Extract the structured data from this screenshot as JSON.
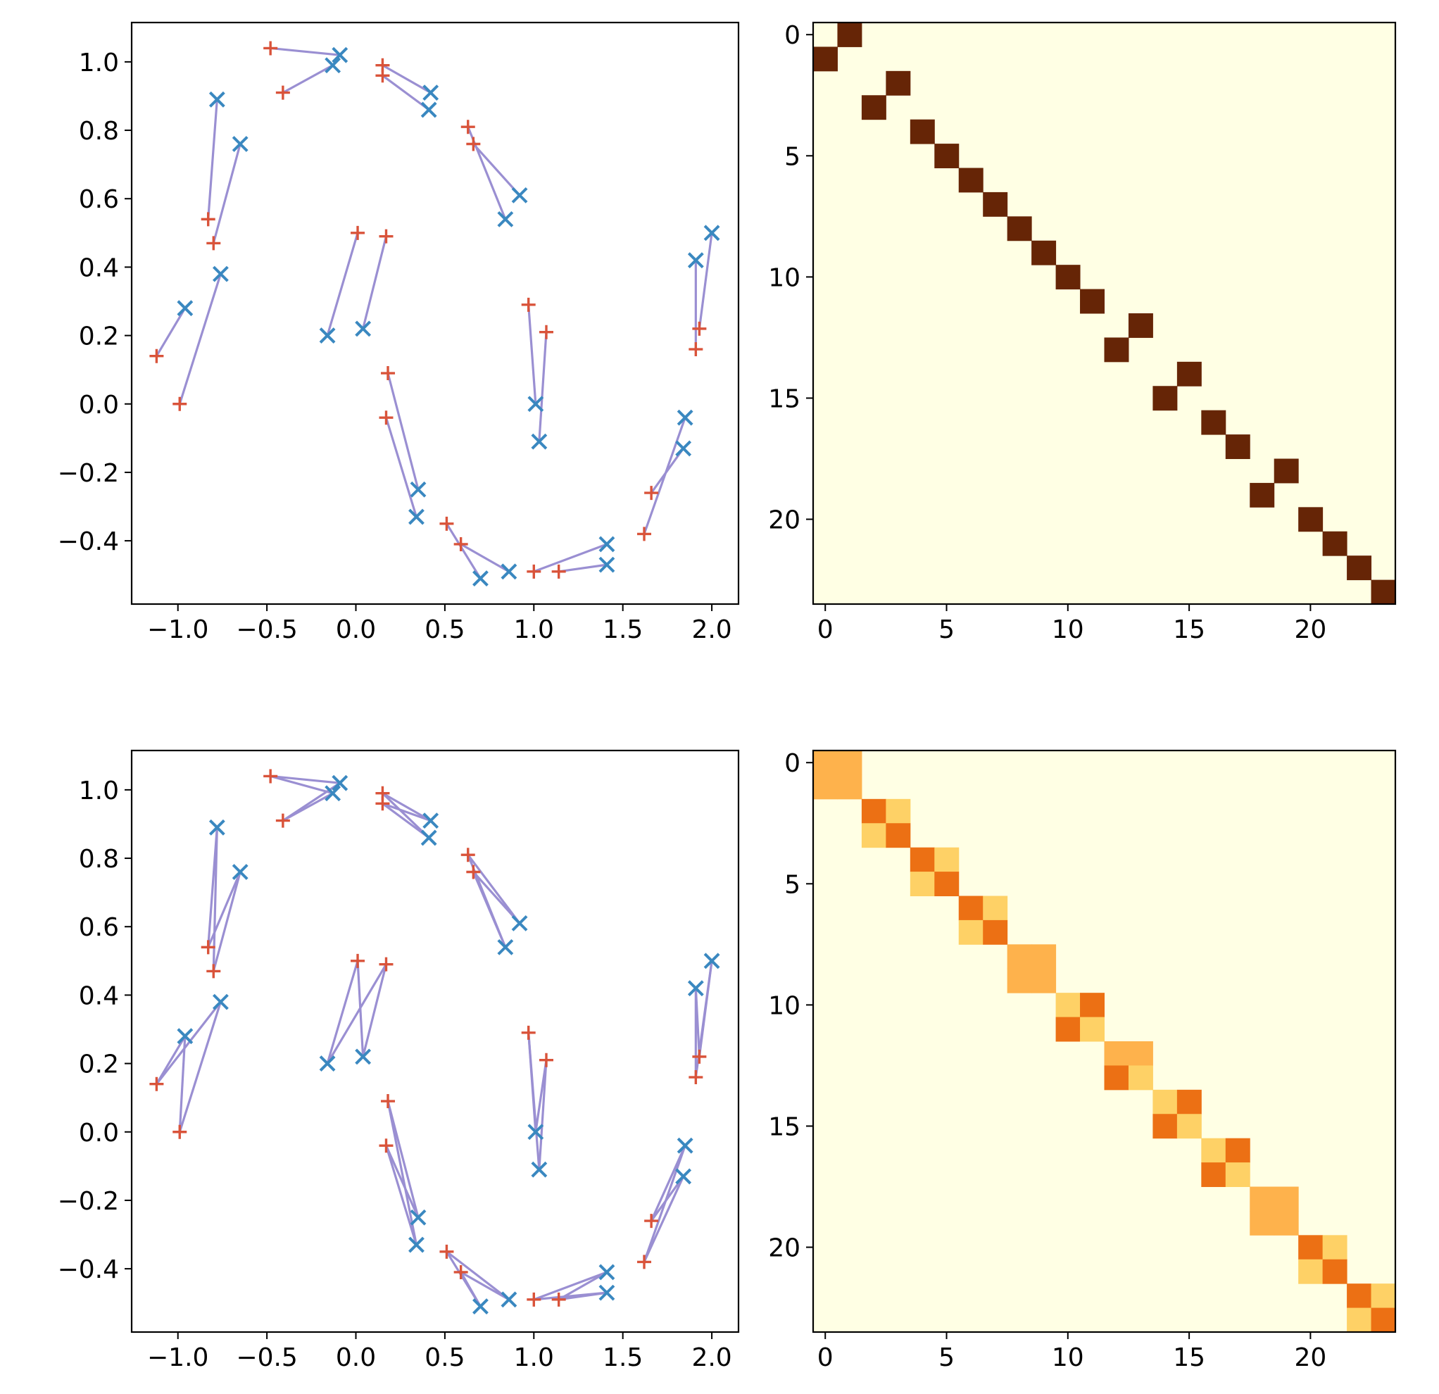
{
  "colors": {
    "source_marker": "#d9533a",
    "target_marker": "#3a88c0",
    "coupling_line": "#9a8fd2",
    "heat_background": "#ffffe4",
    "heat_dark": "#662506",
    "heat_mid": "#ec7014",
    "heat_light": "#feb24c",
    "heat_pale": "#fed166",
    "axis": "#000000"
  },
  "chart_data": [
    {
      "type": "scatter",
      "panel": "top-left",
      "title": "",
      "xlabel": "",
      "ylabel": "",
      "xlim": [
        -1.26,
        2.15
      ],
      "ylim": [
        -0.585,
        1.115
      ],
      "xticks": [
        -1.0,
        -0.5,
        0.0,
        0.5,
        1.0,
        1.5,
        2.0
      ],
      "xtick_labels": [
        "−1.0",
        "−0.5",
        "0.0",
        "0.5",
        "1.0",
        "1.5",
        "2.0"
      ],
      "yticks": [
        -0.4,
        -0.2,
        0.0,
        0.2,
        0.4,
        0.6,
        0.8,
        1.0
      ],
      "ytick_labels": [
        "−0.4",
        "−0.2",
        "0.0",
        "0.2",
        "0.4",
        "0.6",
        "0.8",
        "1.0"
      ],
      "grid": false,
      "series": [
        {
          "marker": "+",
          "points": [
            [
              -0.48,
              1.04
            ],
            [
              -0.41,
              0.91
            ],
            [
              0.15,
              0.99
            ],
            [
              0.15,
              0.96
            ],
            [
              0.63,
              0.81
            ],
            [
              0.66,
              0.76
            ],
            [
              -0.83,
              0.54
            ],
            [
              -0.8,
              0.47
            ],
            [
              0.01,
              0.5
            ],
            [
              0.17,
              0.49
            ],
            [
              0.97,
              0.29
            ],
            [
              1.07,
              0.21
            ],
            [
              -1.12,
              0.14
            ],
            [
              -0.99,
              0.0
            ],
            [
              0.18,
              0.09
            ],
            [
              0.17,
              -0.04
            ],
            [
              1.93,
              0.22
            ],
            [
              1.91,
              0.16
            ],
            [
              1.66,
              -0.26
            ],
            [
              1.62,
              -0.38
            ],
            [
              0.51,
              -0.35
            ],
            [
              0.59,
              -0.41
            ],
            [
              1.0,
              -0.49
            ],
            [
              1.14,
              -0.49
            ]
          ]
        },
        {
          "marker": "x",
          "points": [
            [
              -0.09,
              1.02
            ],
            [
              -0.13,
              0.99
            ],
            [
              0.42,
              0.91
            ],
            [
              0.41,
              0.86
            ],
            [
              0.92,
              0.61
            ],
            [
              0.84,
              0.54
            ],
            [
              -0.78,
              0.89
            ],
            [
              -0.65,
              0.76
            ],
            [
              -0.16,
              0.2
            ],
            [
              0.04,
              0.22
            ],
            [
              1.01,
              0.0
            ],
            [
              1.03,
              -0.11
            ],
            [
              -0.96,
              0.28
            ],
            [
              -0.76,
              0.38
            ],
            [
              0.35,
              -0.25
            ],
            [
              0.34,
              -0.33
            ],
            [
              2.0,
              0.5
            ],
            [
              1.91,
              0.42
            ],
            [
              1.84,
              -0.13
            ],
            [
              1.85,
              -0.04
            ],
            [
              0.7,
              -0.51
            ],
            [
              0.86,
              -0.49
            ],
            [
              1.41,
              -0.41
            ],
            [
              1.41,
              -0.47
            ]
          ]
        }
      ],
      "couplings": [
        [
          0,
          0
        ],
        [
          1,
          1
        ],
        [
          2,
          2
        ],
        [
          3,
          3
        ],
        [
          4,
          5
        ],
        [
          5,
          4
        ],
        [
          6,
          6
        ],
        [
          7,
          7
        ],
        [
          8,
          8
        ],
        [
          9,
          9
        ],
        [
          10,
          10
        ],
        [
          11,
          11
        ],
        [
          12,
          12
        ],
        [
          13,
          13
        ],
        [
          14,
          14
        ],
        [
          15,
          15
        ],
        [
          16,
          16
        ],
        [
          17,
          17
        ],
        [
          18,
          18
        ],
        [
          19,
          19
        ],
        [
          20,
          20
        ],
        [
          21,
          21
        ],
        [
          22,
          22
        ],
        [
          23,
          23
        ]
      ]
    },
    {
      "type": "heatmap",
      "panel": "top-right",
      "title": "",
      "size": 24,
      "xticks": [
        0,
        5,
        10,
        15,
        20
      ],
      "yticks": [
        0,
        5,
        10,
        15,
        20
      ],
      "cells": [
        {
          "r": 0,
          "c": 1,
          "v": 1
        },
        {
          "r": 1,
          "c": 0,
          "v": 1
        },
        {
          "r": 2,
          "c": 3,
          "v": 1
        },
        {
          "r": 3,
          "c": 2,
          "v": 1
        },
        {
          "r": 4,
          "c": 4,
          "v": 1
        },
        {
          "r": 5,
          "c": 5,
          "v": 1
        },
        {
          "r": 6,
          "c": 6,
          "v": 1
        },
        {
          "r": 7,
          "c": 7,
          "v": 1
        },
        {
          "r": 8,
          "c": 8,
          "v": 1
        },
        {
          "r": 9,
          "c": 9,
          "v": 1
        },
        {
          "r": 10,
          "c": 10,
          "v": 1
        },
        {
          "r": 11,
          "c": 11,
          "v": 1
        },
        {
          "r": 12,
          "c": 13,
          "v": 1
        },
        {
          "r": 13,
          "c": 12,
          "v": 1
        },
        {
          "r": 14,
          "c": 15,
          "v": 1
        },
        {
          "r": 15,
          "c": 14,
          "v": 1
        },
        {
          "r": 16,
          "c": 16,
          "v": 1
        },
        {
          "r": 17,
          "c": 17,
          "v": 1
        },
        {
          "r": 18,
          "c": 19,
          "v": 1
        },
        {
          "r": 19,
          "c": 18,
          "v": 1
        },
        {
          "r": 20,
          "c": 20,
          "v": 1
        },
        {
          "r": 21,
          "c": 21,
          "v": 1
        },
        {
          "r": 22,
          "c": 22,
          "v": 1
        },
        {
          "r": 23,
          "c": 23,
          "v": 1
        }
      ]
    },
    {
      "type": "scatter",
      "panel": "bottom-left",
      "title": "",
      "xlabel": "",
      "ylabel": "",
      "xlim": [
        -1.26,
        2.15
      ],
      "ylim": [
        -0.585,
        1.115
      ],
      "xticks": [
        -1.0,
        -0.5,
        0.0,
        0.5,
        1.0,
        1.5,
        2.0
      ],
      "xtick_labels": [
        "−1.0",
        "−0.5",
        "0.0",
        "0.5",
        "1.0",
        "1.5",
        "2.0"
      ],
      "yticks": [
        -0.4,
        -0.2,
        0.0,
        0.2,
        0.4,
        0.6,
        0.8,
        1.0
      ],
      "ytick_labels": [
        "−0.4",
        "−0.2",
        "0.0",
        "0.2",
        "0.4",
        "0.6",
        "0.8",
        "1.0"
      ],
      "grid": false,
      "series": [
        {
          "marker": "+",
          "points": [
            [
              -0.48,
              1.04
            ],
            [
              -0.41,
              0.91
            ],
            [
              0.15,
              0.99
            ],
            [
              0.15,
              0.96
            ],
            [
              0.63,
              0.81
            ],
            [
              0.66,
              0.76
            ],
            [
              -0.83,
              0.54
            ],
            [
              -0.8,
              0.47
            ],
            [
              0.01,
              0.5
            ],
            [
              0.17,
              0.49
            ],
            [
              0.97,
              0.29
            ],
            [
              1.07,
              0.21
            ],
            [
              -1.12,
              0.14
            ],
            [
              -0.99,
              0.0
            ],
            [
              0.18,
              0.09
            ],
            [
              0.17,
              -0.04
            ],
            [
              1.93,
              0.22
            ],
            [
              1.91,
              0.16
            ],
            [
              1.66,
              -0.26
            ],
            [
              1.62,
              -0.38
            ],
            [
              0.51,
              -0.35
            ],
            [
              0.59,
              -0.41
            ],
            [
              1.0,
              -0.49
            ],
            [
              1.14,
              -0.49
            ]
          ]
        },
        {
          "marker": "x",
          "points": [
            [
              -0.09,
              1.02
            ],
            [
              -0.13,
              0.99
            ],
            [
              0.42,
              0.91
            ],
            [
              0.41,
              0.86
            ],
            [
              0.92,
              0.61
            ],
            [
              0.84,
              0.54
            ],
            [
              -0.78,
              0.89
            ],
            [
              -0.65,
              0.76
            ],
            [
              -0.16,
              0.2
            ],
            [
              0.04,
              0.22
            ],
            [
              1.01,
              0.0
            ],
            [
              1.03,
              -0.11
            ],
            [
              -0.96,
              0.28
            ],
            [
              -0.76,
              0.38
            ],
            [
              0.35,
              -0.25
            ],
            [
              0.34,
              -0.33
            ],
            [
              2.0,
              0.5
            ],
            [
              1.91,
              0.42
            ],
            [
              1.84,
              -0.13
            ],
            [
              1.85,
              -0.04
            ],
            [
              0.7,
              -0.51
            ],
            [
              0.86,
              -0.49
            ],
            [
              1.41,
              -0.41
            ],
            [
              1.41,
              -0.47
            ]
          ]
        }
      ],
      "couplings": [
        [
          0,
          0
        ],
        [
          0,
          1
        ],
        [
          1,
          0
        ],
        [
          1,
          1
        ],
        [
          2,
          2
        ],
        [
          2,
          3
        ],
        [
          3,
          2
        ],
        [
          3,
          3
        ],
        [
          4,
          4
        ],
        [
          4,
          5
        ],
        [
          5,
          4
        ],
        [
          5,
          5
        ],
        [
          6,
          6
        ],
        [
          6,
          7
        ],
        [
          7,
          6
        ],
        [
          7,
          7
        ],
        [
          8,
          8
        ],
        [
          8,
          9
        ],
        [
          9,
          8
        ],
        [
          9,
          9
        ],
        [
          10,
          10
        ],
        [
          10,
          11
        ],
        [
          11,
          10
        ],
        [
          11,
          11
        ],
        [
          12,
          12
        ],
        [
          12,
          13
        ],
        [
          13,
          12
        ],
        [
          13,
          13
        ],
        [
          14,
          14
        ],
        [
          14,
          15
        ],
        [
          15,
          14
        ],
        [
          15,
          15
        ],
        [
          16,
          16
        ],
        [
          16,
          17
        ],
        [
          17,
          16
        ],
        [
          17,
          17
        ],
        [
          18,
          18
        ],
        [
          18,
          19
        ],
        [
          19,
          18
        ],
        [
          19,
          19
        ],
        [
          20,
          20
        ],
        [
          20,
          21
        ],
        [
          21,
          20
        ],
        [
          21,
          21
        ],
        [
          22,
          22
        ],
        [
          22,
          23
        ],
        [
          23,
          22
        ],
        [
          23,
          23
        ]
      ]
    },
    {
      "type": "heatmap",
      "panel": "bottom-right",
      "title": "",
      "size": 24,
      "xticks": [
        0,
        5,
        10,
        15,
        20
      ],
      "yticks": [
        0,
        5,
        10,
        15,
        20
      ],
      "cells": [
        {
          "r": 0,
          "c": 0,
          "v": 0.5
        },
        {
          "r": 0,
          "c": 1,
          "v": 0.5
        },
        {
          "r": 1,
          "c": 0,
          "v": 0.5
        },
        {
          "r": 1,
          "c": 1,
          "v": 0.5
        },
        {
          "r": 2,
          "c": 2,
          "v": 0.62
        },
        {
          "r": 2,
          "c": 3,
          "v": 0.38
        },
        {
          "r": 3,
          "c": 2,
          "v": 0.38
        },
        {
          "r": 3,
          "c": 3,
          "v": 0.62
        },
        {
          "r": 4,
          "c": 4,
          "v": 0.72
        },
        {
          "r": 4,
          "c": 5,
          "v": 0.28
        },
        {
          "r": 5,
          "c": 4,
          "v": 0.28
        },
        {
          "r": 5,
          "c": 5,
          "v": 0.72
        },
        {
          "r": 6,
          "c": 6,
          "v": 0.65
        },
        {
          "r": 6,
          "c": 7,
          "v": 0.35
        },
        {
          "r": 7,
          "c": 6,
          "v": 0.35
        },
        {
          "r": 7,
          "c": 7,
          "v": 0.65
        },
        {
          "r": 8,
          "c": 8,
          "v": 0.55
        },
        {
          "r": 8,
          "c": 9,
          "v": 0.45
        },
        {
          "r": 9,
          "c": 8,
          "v": 0.45
        },
        {
          "r": 9,
          "c": 9,
          "v": 0.55
        },
        {
          "r": 10,
          "c": 10,
          "v": 0.38
        },
        {
          "r": 10,
          "c": 11,
          "v": 0.62
        },
        {
          "r": 11,
          "c": 10,
          "v": 0.62
        },
        {
          "r": 11,
          "c": 11,
          "v": 0.38
        },
        {
          "r": 12,
          "c": 12,
          "v": 0.55
        },
        {
          "r": 12,
          "c": 13,
          "v": 0.45
        },
        {
          "r": 13,
          "c": 12,
          "v": 0.62
        },
        {
          "r": 13,
          "c": 13,
          "v": 0.38
        },
        {
          "r": 14,
          "c": 14,
          "v": 0.38
        },
        {
          "r": 14,
          "c": 15,
          "v": 0.65
        },
        {
          "r": 15,
          "c": 14,
          "v": 0.65
        },
        {
          "r": 15,
          "c": 15,
          "v": 0.35
        },
        {
          "r": 16,
          "c": 16,
          "v": 0.38
        },
        {
          "r": 16,
          "c": 17,
          "v": 0.65
        },
        {
          "r": 17,
          "c": 16,
          "v": 0.65
        },
        {
          "r": 17,
          "c": 17,
          "v": 0.35
        },
        {
          "r": 18,
          "c": 18,
          "v": 0.5
        },
        {
          "r": 18,
          "c": 19,
          "v": 0.5
        },
        {
          "r": 19,
          "c": 18,
          "v": 0.5
        },
        {
          "r": 19,
          "c": 19,
          "v": 0.5
        },
        {
          "r": 20,
          "c": 20,
          "v": 0.72
        },
        {
          "r": 20,
          "c": 21,
          "v": 0.28
        },
        {
          "r": 21,
          "c": 20,
          "v": 0.28
        },
        {
          "r": 21,
          "c": 21,
          "v": 0.72
        },
        {
          "r": 22,
          "c": 22,
          "v": 0.72
        },
        {
          "r": 22,
          "c": 23,
          "v": 0.28
        },
        {
          "r": 23,
          "c": 22,
          "v": 0.28
        },
        {
          "r": 23,
          "c": 23,
          "v": 0.72
        }
      ]
    }
  ]
}
